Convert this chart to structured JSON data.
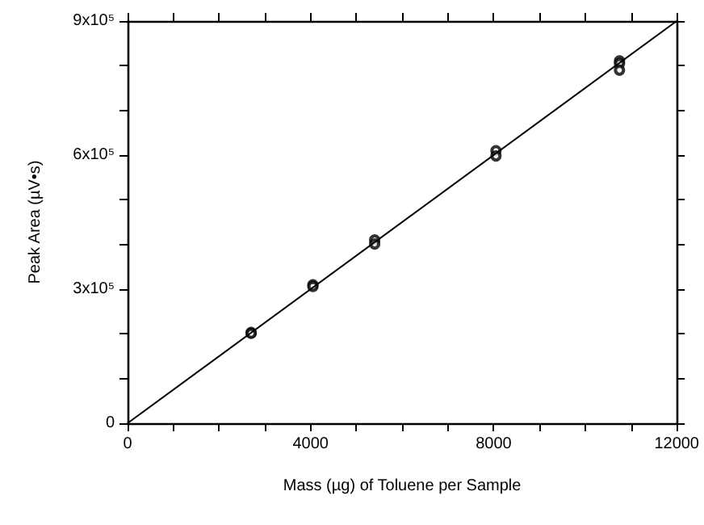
{
  "chart_data": {
    "type": "scatter",
    "xlabel": "Mass (µg) of Toluene per Sample",
    "ylabel": "Peak Area (µV•s)",
    "series": [
      {
        "type": "scatter",
        "color": "#000000",
        "marker": "circle",
        "x": [
          2700,
          2700,
          4050,
          4050,
          5400,
          5400,
          8050,
          8050,
          10750,
          10750,
          10750
        ],
        "values": [
          203000,
          201000,
          310000,
          306000,
          410000,
          401000,
          610000,
          598000,
          811000,
          805000,
          790000
        ]
      },
      {
        "type": "line",
        "color": "#000000",
        "marker": "none",
        "x": [
          0,
          12000
        ],
        "values": [
          0,
          900000
        ]
      }
    ],
    "xlim": [
      0,
      12000
    ],
    "xticks": [
      0,
      {
        "value": 1000,
        "label": null
      },
      {
        "value": 2000,
        "label": null
      },
      {
        "value": 3000,
        "label": null
      },
      4000,
      {
        "value": 5000,
        "label": null
      },
      {
        "value": 6000,
        "label": null
      },
      {
        "value": 7000,
        "label": null
      },
      8000,
      {
        "value": 9000,
        "label": null
      },
      {
        "value": 10000,
        "label": null
      },
      {
        "value": 11000,
        "label": null
      },
      12000
    ],
    "ylim": [
      0,
      900000
    ],
    "yticks": [
      0,
      {
        "value": 100000,
        "label": null
      },
      {
        "value": 200000,
        "label": null
      },
      {
        "value": 300000,
        "label": "3x10⁵"
      },
      {
        "value": 400000,
        "label": null
      },
      {
        "value": 500000,
        "label": null
      },
      {
        "value": 600000,
        "label": "6x10⁵"
      },
      {
        "value": 700000,
        "label": null
      },
      {
        "value": 800000,
        "label": null
      },
      {
        "value": 900000,
        "label": "9x10⁵"
      }
    ],
    "grid": false
  }
}
